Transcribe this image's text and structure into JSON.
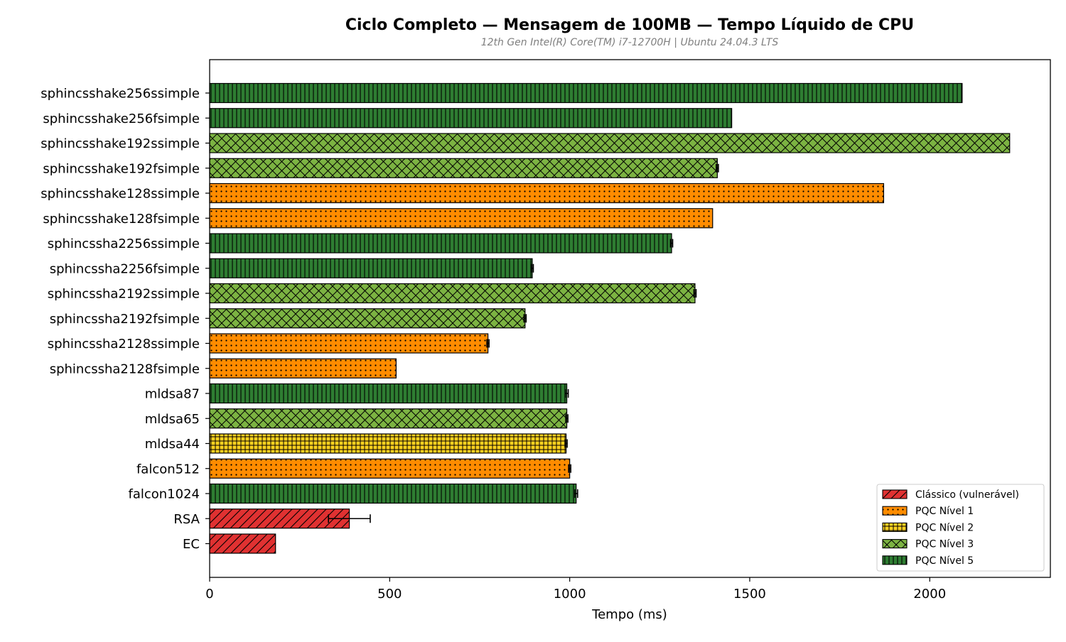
{
  "chart_data": {
    "type": "bar",
    "orientation": "horizontal",
    "title": "Ciclo Completo — Mensagem de 100MB — Tempo Líquido de CPU",
    "subtitle": "12th Gen Intel(R) Core(TM) i7-12700H | Ubuntu 24.04.3 LTS",
    "xlabel": "Tempo (ms)",
    "ylabel": "",
    "xlim": [
      0,
      2335
    ],
    "xticks": [
      0,
      500,
      1000,
      1500,
      2000
    ],
    "grid": false,
    "legend_position": "bottom-right",
    "categories": [
      {
        "label": "Clássico (vulnerável)",
        "color": "#e03131",
        "pattern": "diagonal"
      },
      {
        "label": "PQC Nível 1",
        "color": "#ff8c00",
        "pattern": "dots"
      },
      {
        "label": "PQC Nível 2",
        "color": "#ffd21f",
        "pattern": "grid"
      },
      {
        "label": "PQC Nível 3",
        "color": "#7cb342",
        "pattern": "crosshatch"
      },
      {
        "label": "PQC Nível 5",
        "color": "#2e7d32",
        "pattern": "vertical"
      }
    ],
    "bars": [
      {
        "label": "sphincsshake256ssimple",
        "value": 2090,
        "category": 4
      },
      {
        "label": "sphincsshake256fsimple",
        "value": 1450,
        "category": 4
      },
      {
        "label": "sphincsshake192ssimple",
        "value": 2222,
        "category": 3
      },
      {
        "label": "sphincsshake192fsimple",
        "value": 1410,
        "category": 3,
        "error": 3
      },
      {
        "label": "sphincsshake128ssimple",
        "value": 1872,
        "category": 1
      },
      {
        "label": "sphincsshake128fsimple",
        "value": 1397,
        "category": 1
      },
      {
        "label": "sphincssha2256ssimple",
        "value": 1283,
        "category": 4,
        "error": 3
      },
      {
        "label": "sphincssha2256fsimple",
        "value": 896,
        "category": 4,
        "error": 3
      },
      {
        "label": "sphincssha2192ssimple",
        "value": 1348,
        "category": 3,
        "error": 3
      },
      {
        "label": "sphincssha2192fsimple",
        "value": 876,
        "category": 3,
        "error": 3
      },
      {
        "label": "sphincssha2128ssimple",
        "value": 773,
        "category": 1,
        "error": 3
      },
      {
        "label": "sphincssha2128fsimple",
        "value": 518,
        "category": 1
      },
      {
        "label": "mldsa87",
        "value": 992,
        "category": 4,
        "error": 4
      },
      {
        "label": "mldsa65",
        "value": 992,
        "category": 3,
        "error": 3
      },
      {
        "label": "mldsa44",
        "value": 990,
        "category": 2,
        "error": 3
      },
      {
        "label": "falcon512",
        "value": 1000,
        "category": 1,
        "error": 3
      },
      {
        "label": "falcon1024",
        "value": 1018,
        "category": 4,
        "error": 4
      },
      {
        "label": "RSA",
        "value": 388,
        "category": 0,
        "error": 58
      },
      {
        "label": "EC",
        "value": 183,
        "category": 0
      }
    ]
  }
}
